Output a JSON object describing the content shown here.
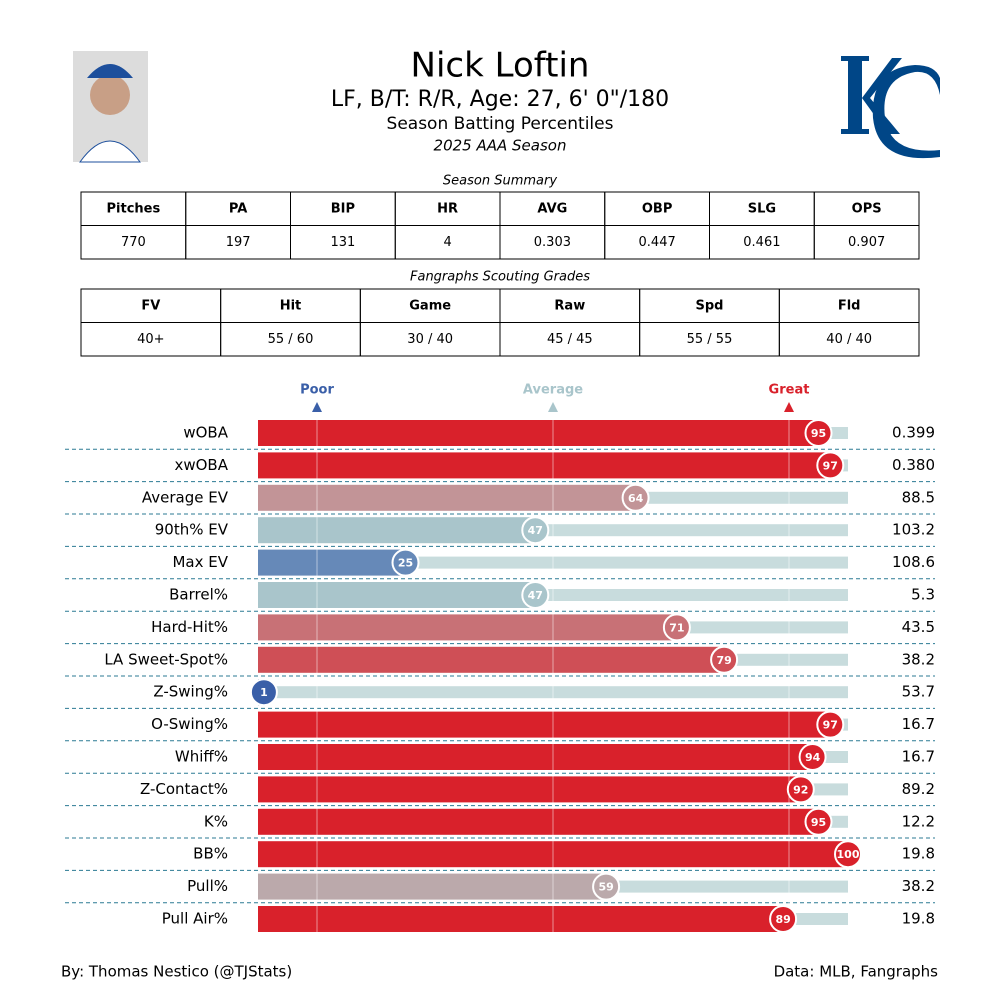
{
  "header": {
    "title": "Nick Loftin",
    "subtitle": "LF, B/T: R/R, Age: 27, 6' 0\"/180",
    "chart_title": "Season Batting Percentiles",
    "season": "2025 AAA Season"
  },
  "summary": {
    "title": "Season Summary",
    "headers": [
      "Pitches",
      "PA",
      "BIP",
      "HR",
      "AVG",
      "OBP",
      "SLG",
      "OPS"
    ],
    "rows": [
      [
        770,
        197,
        131,
        4,
        0.303,
        0.447,
        0.461,
        0.907
      ]
    ]
  },
  "scouting": {
    "title": "Fangraphs Scouting Grades",
    "headers": [
      "FV",
      "Hit",
      "Game",
      "Raw",
      "Spd",
      "Fld"
    ],
    "rows": [
      [
        "40+",
        "55 / 60",
        "30 / 40",
        "45 / 45",
        "55 / 55",
        "40 / 40"
      ]
    ]
  },
  "chart_data": {
    "type": "bar",
    "orientation": "horizontal",
    "categories": [
      "wOBA",
      "xwOBA",
      "Average EV",
      "90th% EV",
      "Max EV",
      "Barrel%",
      "Hard-Hit%",
      "LA Sweet-Spot%",
      "Z-Swing%",
      "O-Swing%",
      "Whiff%",
      "Z-Contact%",
      "K%",
      "BB%",
      "Pull%",
      "Pull Air%"
    ],
    "values": [
      95,
      97,
      64,
      47,
      25,
      47,
      71,
      79,
      1,
      97,
      94,
      92,
      95,
      100,
      59,
      89
    ],
    "colors": [
      "#d9212b",
      "#d9212b",
      "#c29497",
      "#a9c5cb",
      "#6689b8",
      "#a9c5cb",
      "#c87176",
      "#cf4f56",
      "#3a5fa8",
      "#d9212b",
      "#d9212b",
      "#d9212b",
      "#d9212b",
      "#d9212b",
      "#bba9ab",
      "#d9212b"
    ],
    "stat_values": [
      "0.399",
      "0.380",
      "88.5",
      "103.2",
      "108.6",
      "5.3",
      "43.5",
      "38.2",
      "53.7",
      "16.7",
      "16.7",
      "89.2",
      "12.2",
      "19.8",
      "38.2",
      "19.8"
    ],
    "track_color": "#c8dcdd",
    "xlim": [
      0,
      100
    ],
    "xticks": [
      {
        "value": 10,
        "label": "Poor"
      },
      {
        "value": 50,
        "label": "Average"
      },
      {
        "value": 90,
        "label": "Great"
      }
    ],
    "xtick_colors": [
      "#3a5fa8",
      "#a9c5cb",
      "#d9212b"
    ]
  },
  "footer": {
    "left": "By: Thomas Nestico (@TJStats)",
    "right": "Data: MLB, Fangraphs"
  }
}
